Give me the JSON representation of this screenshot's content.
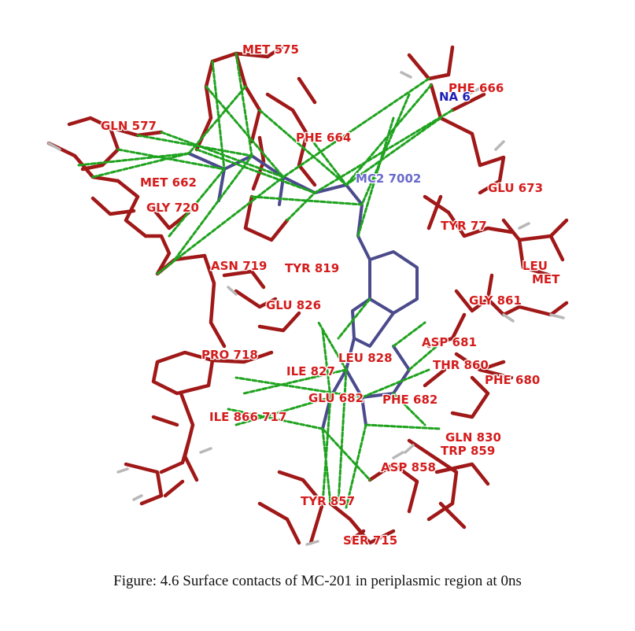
{
  "figure": {
    "caption": "Figure: 4.6 Surface contacts of MC-201 in periplasmic region at 0ns",
    "colors": {
      "residue": "#a01818",
      "residue_label": "#d41c1c",
      "ligand": "#4b4a8c",
      "ligand_label": "#6a6acc",
      "ion_label": "#2020b8",
      "contact": "#1fa31f",
      "hydrogen": "#b8b8b8"
    },
    "labels": [
      {
        "id": "met-575",
        "text": "MET 575",
        "kind": "residue"
      },
      {
        "id": "phe-666",
        "text": "PHE 666",
        "kind": "residue"
      },
      {
        "id": "na-6",
        "text": "NA 6",
        "kind": "ion"
      },
      {
        "id": "gln-577",
        "text": "GLN 577",
        "kind": "residue"
      },
      {
        "id": "phe-664",
        "text": "PHE 664",
        "kind": "residue"
      },
      {
        "id": "mc2-7002",
        "text": "MC2 7002",
        "kind": "ligand"
      },
      {
        "id": "met-662",
        "text": "MET 662",
        "kind": "residue"
      },
      {
        "id": "glu-673",
        "text": "GLU 673",
        "kind": "residue"
      },
      {
        "id": "gly-720",
        "text": "GLY 720",
        "kind": "residue"
      },
      {
        "id": "tyr-77",
        "text": "TYR 77",
        "kind": "residue"
      },
      {
        "id": "leu",
        "text": "LEU",
        "kind": "residue"
      },
      {
        "id": "met",
        "text": "MET",
        "kind": "residue"
      },
      {
        "id": "asn-719",
        "text": "ASN 719",
        "kind": "residue"
      },
      {
        "id": "tyr-819",
        "text": "TYR 819",
        "kind": "residue"
      },
      {
        "id": "gly-861",
        "text": "GLY 861",
        "kind": "residue"
      },
      {
        "id": "glu-826",
        "text": "GLU 826",
        "kind": "residue"
      },
      {
        "id": "asp-681",
        "text": "ASP 681",
        "kind": "residue"
      },
      {
        "id": "pro-718",
        "text": "PRO 718",
        "kind": "residue"
      },
      {
        "id": "leu-828",
        "text": "LEU 828",
        "kind": "residue"
      },
      {
        "id": "thr-860",
        "text": "THR 860",
        "kind": "residue"
      },
      {
        "id": "ile-827",
        "text": "ILE 827",
        "kind": "residue"
      },
      {
        "id": "phe-680",
        "text": "PHE 680",
        "kind": "residue"
      },
      {
        "id": "glu-682",
        "text": "GLU 682",
        "kind": "residue"
      },
      {
        "id": "phe-682",
        "text": "PHE 682",
        "kind": "residue"
      },
      {
        "id": "ile-717",
        "text": "ILE 866 717",
        "kind": "residue"
      },
      {
        "id": "gln-830",
        "text": "GLN 830",
        "kind": "residue"
      },
      {
        "id": "trp-859",
        "text": "TRP 859",
        "kind": "residue"
      },
      {
        "id": "asp-858",
        "text": "ASP 858",
        "kind": "residue"
      },
      {
        "id": "tyr-857",
        "text": "TYR 857",
        "kind": "residue"
      },
      {
        "id": "ser-715",
        "text": "SER 715",
        "kind": "residue"
      }
    ]
  }
}
